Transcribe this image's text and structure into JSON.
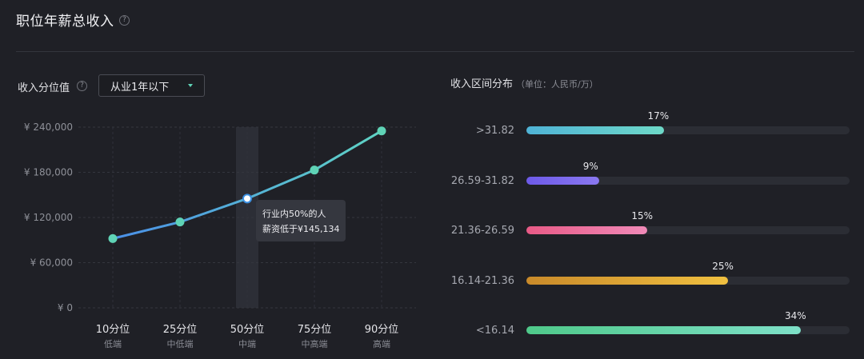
{
  "header": {
    "title": "职位年薪总收入",
    "help_icon": "question-circle-icon"
  },
  "left": {
    "label": "收入分位值",
    "select": {
      "value": "从业1年以下"
    }
  },
  "tooltip": {
    "line1": "行业内50%的人",
    "line2": "薪资低于¥145,134"
  },
  "chart_data": [
    {
      "type": "line",
      "categories": [
        "10分位",
        "25分位",
        "50分位",
        "75分位",
        "90分位"
      ],
      "subcategories": [
        "低端",
        "中低端",
        "中端",
        "中高端",
        "高端"
      ],
      "values": [
        92000,
        114000,
        145134,
        183000,
        235000
      ],
      "yticks": [
        "¥ 240,000",
        "¥ 180,000",
        "¥ 120,000",
        "¥ 60,000",
        "¥ 0"
      ],
      "ylim": [
        0,
        240000
      ],
      "highlight_index": 2,
      "grid": true,
      "colors": {
        "line_start": "#4a8fe8",
        "line_end": "#5fd3c4",
        "point": "#5fd3b6"
      }
    },
    {
      "type": "bar",
      "title": "收入区间分布",
      "unit": "（单位：人民币/万）",
      "categories": [
        ">31.82",
        "26.59-31.82",
        "21.36-26.59",
        "16.14-21.36",
        "<16.14"
      ],
      "values": [
        17,
        9,
        15,
        25,
        34
      ],
      "labels": [
        "17%",
        "9%",
        "15%",
        "25%",
        "34%"
      ],
      "colors": [
        [
          "#4fb3d6",
          "#6ed9c8"
        ],
        [
          "#6d5ae8",
          "#8a78f0"
        ],
        [
          "#e85a86",
          "#f08ab8"
        ],
        [
          "#c98a2a",
          "#f0c040"
        ],
        [
          "#4fc98a",
          "#7ee0c8"
        ]
      ]
    }
  ]
}
